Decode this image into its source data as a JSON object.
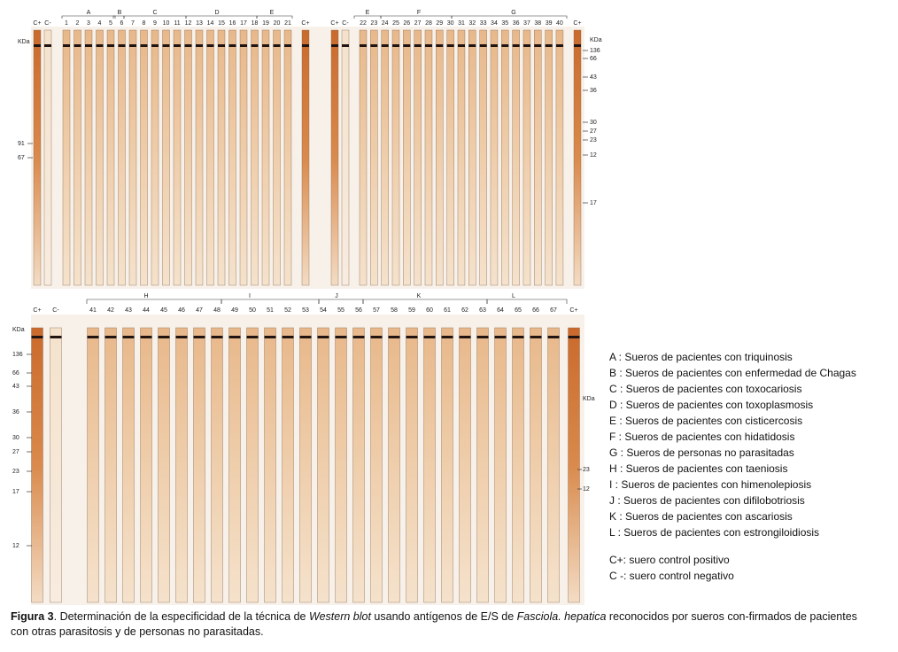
{
  "top_panel": {
    "lanes": [
      "C+",
      "C-",
      "1",
      "2",
      "3",
      "4",
      "5",
      "6",
      "7",
      "8",
      "9",
      "10",
      "11",
      "12",
      "13",
      "14",
      "15",
      "16",
      "17",
      "18",
      "19",
      "20",
      "21",
      "C+",
      "C+",
      "C-",
      "22",
      "23",
      "24",
      "25",
      "26",
      "27",
      "28",
      "29",
      "30",
      "31",
      "32",
      "33",
      "34",
      "35",
      "36",
      "37",
      "38",
      "39",
      "40",
      "C+"
    ],
    "groups": [
      "A",
      "B",
      "C",
      "D",
      "E",
      "E",
      "F",
      "G"
    ],
    "markers_left": [
      "KDa",
      "91",
      "67"
    ],
    "markers_right": [
      "KDa",
      "136",
      "66",
      "43",
      "36",
      "30",
      "27",
      "23",
      "12",
      "17"
    ]
  },
  "bottom_panel": {
    "lanes": [
      "C+",
      "C-",
      "41",
      "42",
      "43",
      "44",
      "45",
      "46",
      "47",
      "48",
      "49",
      "50",
      "51",
      "52",
      "53",
      "54",
      "55",
      "56",
      "57",
      "58",
      "59",
      "60",
      "61",
      "62",
      "63",
      "64",
      "65",
      "66",
      "67",
      "C+"
    ],
    "groups": [
      "H",
      "I",
      "J",
      "K",
      "L"
    ],
    "markers_left": [
      "KDa",
      "136",
      "66",
      "43",
      "36",
      "30",
      "27",
      "23",
      "17",
      "12"
    ],
    "markers_right": [
      "KDa",
      "23",
      "12"
    ]
  },
  "legend": [
    "A : Sueros de pacientes con triquinosis",
    "B : Sueros de pacientes con enfermedad de Chagas",
    "C : Sueros de pacientes con toxocariosis",
    "D : Sueros de pacientes con toxoplasmosis",
    "E : Sueros de pacientes con cisticercosis",
    "F : Sueros de pacientes con hidatidosis",
    "G : Sueros de personas no parasitadas",
    "H : Sueros de pacientes con taeniosis",
    "I  : Sueros de pacientes con himenolepiosis",
    "J : Sueros de pacientes con difilobotriosis",
    "K : Sueros de pacientes con ascariosis",
    "L : Sueros de pacientes con estrongiloidiosis"
  ],
  "controls": [
    "C+: suero control positivo",
    "C -: suero control negativo"
  ],
  "caption": {
    "label": "Figura 3",
    "text1": ". Determinación de la especificidad de la técnica de ",
    "italic1": "Western blot",
    "text2": " usando antígenos de E/S de ",
    "italic2": "Fasciola. hepatica",
    "text3": " reconocidos por sueros con-firmados de pacientes con otras parasitosis y de personas no parasitadas."
  }
}
